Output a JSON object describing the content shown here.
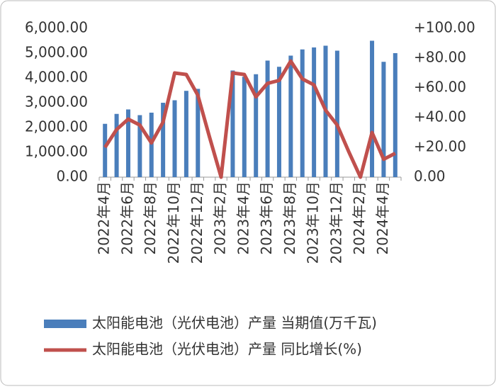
{
  "chart_data": {
    "type": "bar_line",
    "categories": [
      "2022年4月",
      null,
      "2022年6月",
      null,
      "2022年8月",
      null,
      "2022年10月",
      null,
      "2022年12月",
      null,
      "2023年2月",
      null,
      "2023年4月",
      null,
      "2023年6月",
      null,
      "2023年8月",
      null,
      "2023年10月",
      null,
      "2023年12月",
      null,
      "2024年2月",
      null,
      "2024年4月",
      null
    ],
    "series": [
      {
        "name": "太阳能电池（光伏电池）产量 当期值(万千瓦)",
        "type": "bar",
        "color": "#4a7ebb",
        "axis": "y",
        "values": [
          2150,
          2550,
          2730,
          2500,
          2600,
          3000,
          3100,
          3480,
          3560,
          null,
          null,
          4300,
          4050,
          4150,
          4700,
          4450,
          4900,
          5150,
          5230,
          5300,
          5100,
          null,
          null,
          5500,
          4650,
          5000
        ]
      },
      {
        "name": "太阳能电池（光伏电池）产量 同比增长(%)",
        "type": "line",
        "color": "#c0504d",
        "axis": "y2",
        "values": [
          20,
          32,
          39,
          35,
          23,
          37,
          70,
          69,
          55,
          27,
          0,
          70,
          69,
          54,
          63,
          65,
          78,
          66,
          62,
          45,
          35,
          17,
          0,
          30,
          12,
          16
        ]
      }
    ],
    "ylim": [
      0,
      6000
    ],
    "yticks": [
      {
        "value": 0,
        "label": "0.00"
      },
      {
        "value": 1000,
        "label": "1,000.00"
      },
      {
        "value": 2000,
        "label": "2,000.00"
      },
      {
        "value": 3000,
        "label": "3,000.00"
      },
      {
        "value": 4000,
        "label": "4,000.00"
      },
      {
        "value": 5000,
        "label": "5,000.00"
      },
      {
        "value": 6000,
        "label": "6,000.00"
      }
    ],
    "y2lim": [
      0,
      100
    ],
    "y2ticks": [
      {
        "value": 0,
        "label": "0.00"
      },
      {
        "value": 20,
        "label": "+20.00"
      },
      {
        "value": 40,
        "label": "+40.00"
      },
      {
        "value": 60,
        "label": "+60.00"
      },
      {
        "value": 80,
        "label": "+80.00"
      },
      {
        "value": 100,
        "label": "+100.00"
      }
    ],
    "legend": "bottom"
  }
}
